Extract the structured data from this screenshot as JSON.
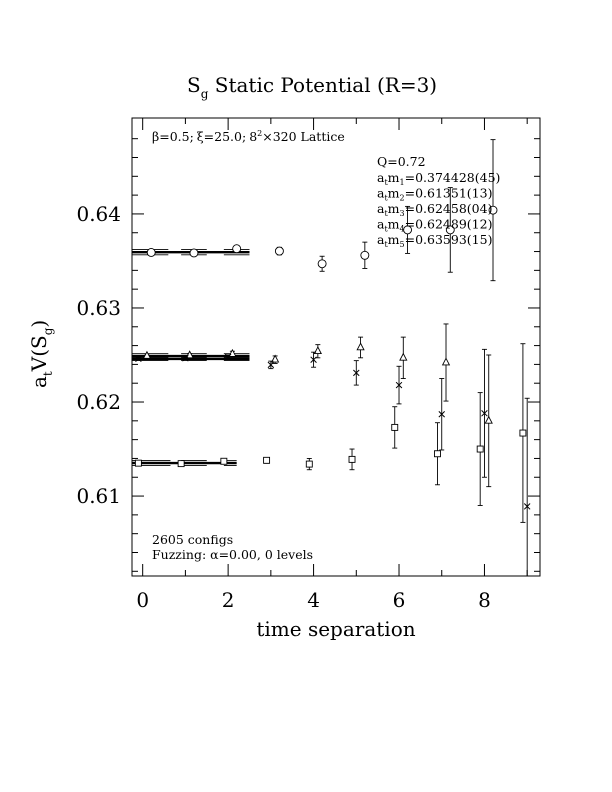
{
  "chart_data": {
    "type": "scatter",
    "title_main": "S",
    "title_sub": "g",
    "title_rest": " Static Potential (R=3)",
    "xlabel": "time separation",
    "ylabel_main": "a",
    "ylabel_sub1": "t",
    "ylabel_mid": "V(S",
    "ylabel_sub2": "g",
    "ylabel_end": ")",
    "xlim": [
      -0.25,
      9.3
    ],
    "ylim": [
      0.6015,
      0.6502
    ],
    "x_ticks": [
      0,
      2,
      4,
      6,
      8
    ],
    "x_tick_labels": [
      "0",
      "2",
      "4",
      "6",
      "8"
    ],
    "y_ticks": [
      0.61,
      0.62,
      0.63,
      0.64
    ],
    "y_tick_labels": [
      "0.61",
      "0.62",
      "0.63",
      "0.64"
    ],
    "lattice_info": {
      "beta": "β=0.5;",
      "xi": "ξ=25.0;",
      "lattice_pre": "8",
      "lattice_sup": "2",
      "lattice_post": "×320 Lattice"
    },
    "fit_info": {
      "q": "Q=0.72",
      "masses": [
        {
          "pre": "a",
          "sub1": "t",
          "mid": "m",
          "sub2": "1",
          "value": "=0.374428(45)"
        },
        {
          "pre": "a",
          "sub1": "t",
          "mid": "m",
          "sub2": "2",
          "value": "=0.61351(13)"
        },
        {
          "pre": "a",
          "sub1": "t",
          "mid": "m",
          "sub2": "3",
          "value": "=0.62458(04)"
        },
        {
          "pre": "a",
          "sub1": "t",
          "mid": "m",
          "sub2": "4",
          "value": "=0.62489(12)"
        },
        {
          "pre": "a",
          "sub1": "t",
          "mid": "m",
          "sub2": "5",
          "value": "=0.63593(15)"
        }
      ]
    },
    "configs": "2605 configs",
    "fuzzing": "Fuzzing: α=0.00, 0 levels",
    "fit_lines": [
      {
        "y": 0.63593,
        "band": 0.00015,
        "x_range": [
          -0.25,
          2.5
        ],
        "segments": [
          [
            -0.25,
            0.6
          ],
          [
            0.9,
            1.5
          ],
          [
            1.9,
            2.5
          ]
        ]
      },
      {
        "y": 0.62489,
        "band": 0.00012,
        "x_range": [
          -0.25,
          2.5
        ],
        "segments": [
          [
            -0.25,
            0.6
          ],
          [
            0.9,
            1.5
          ],
          [
            1.9,
            2.5
          ]
        ]
      },
      {
        "y": 0.62458,
        "band": 4e-05,
        "x_range": [
          -0.25,
          2.5
        ],
        "segments": [
          [
            -0.25,
            0.6
          ],
          [
            0.9,
            1.5
          ],
          [
            1.9,
            2.5
          ]
        ]
      },
      {
        "y": 0.61351,
        "band": 0.00013,
        "x_range": [
          -0.25,
          2.2
        ],
        "segments": [
          [
            -0.25,
            0.65
          ],
          [
            0.9,
            1.5
          ],
          [
            1.9,
            2.2
          ]
        ]
      }
    ],
    "series": [
      {
        "marker": "circle",
        "points": [
          {
            "x": 0.2,
            "y": 0.6359,
            "err": 0.0001
          },
          {
            "x": 1.2,
            "y": 0.63585,
            "err": 0.0002
          },
          {
            "x": 2.2,
            "y": 0.6363,
            "err": 0.0003
          },
          {
            "x": 3.2,
            "y": 0.63605,
            "err": 0.0004
          },
          {
            "x": 4.2,
            "y": 0.6347,
            "err": 0.0008
          },
          {
            "x": 5.2,
            "y": 0.6356,
            "err": 0.0014
          },
          {
            "x": 6.2,
            "y": 0.6383,
            "err": 0.0025
          },
          {
            "x": 7.2,
            "y": 0.6383,
            "err": 0.0045
          },
          {
            "x": 8.2,
            "y": 0.6404,
            "err": 0.0075
          }
        ]
      },
      {
        "marker": "triangle",
        "points": [
          {
            "x": 0.1,
            "y": 0.6249,
            "err": 0.0001
          },
          {
            "x": 1.1,
            "y": 0.62495,
            "err": 0.0002
          },
          {
            "x": 2.1,
            "y": 0.6251,
            "err": 0.0003
          },
          {
            "x": 3.1,
            "y": 0.6245,
            "err": 0.0004
          },
          {
            "x": 4.1,
            "y": 0.6254,
            "err": 0.0007
          },
          {
            "x": 5.1,
            "y": 0.6258,
            "err": 0.0011
          },
          {
            "x": 6.1,
            "y": 0.6247,
            "err": 0.0022
          },
          {
            "x": 7.1,
            "y": 0.6242,
            "err": 0.0041
          },
          {
            "x": 8.1,
            "y": 0.618,
            "err": 0.007
          }
        ]
      },
      {
        "marker": "cross",
        "points": [
          {
            "x": -0.1,
            "y": 0.6246,
            "err": 0.0001
          },
          {
            "x": 1.0,
            "y": 0.62465,
            "err": 0.0001
          },
          {
            "x": 2.0,
            "y": 0.6248,
            "err": 0.0002
          },
          {
            "x": 3.0,
            "y": 0.62395,
            "err": 0.0004
          },
          {
            "x": 4.0,
            "y": 0.6245,
            "err": 0.0008
          },
          {
            "x": 5.0,
            "y": 0.6231,
            "err": 0.0013
          },
          {
            "x": 6.0,
            "y": 0.6218,
            "err": 0.002
          },
          {
            "x": 7.0,
            "y": 0.6187,
            "err": 0.0038
          },
          {
            "x": 8.0,
            "y": 0.6188,
            "err": 0.0068
          },
          {
            "x": 9.0,
            "y": 0.6089,
            "err": 0.0115
          }
        ]
      },
      {
        "marker": "square",
        "points": [
          {
            "x": -0.1,
            "y": 0.6135,
            "err": 0.0001
          },
          {
            "x": 0.9,
            "y": 0.61345,
            "err": 0.0001
          },
          {
            "x": 1.9,
            "y": 0.6137,
            "err": 0.0002
          },
          {
            "x": 2.9,
            "y": 0.6138,
            "err": 0.0003
          },
          {
            "x": 3.9,
            "y": 0.6134,
            "err": 0.0006
          },
          {
            "x": 4.9,
            "y": 0.6139,
            "err": 0.0011
          },
          {
            "x": 5.9,
            "y": 0.6173,
            "err": 0.0022
          },
          {
            "x": 6.9,
            "y": 0.6145,
            "err": 0.0033
          },
          {
            "x": 7.9,
            "y": 0.615,
            "err": 0.006
          },
          {
            "x": 8.9,
            "y": 0.6167,
            "err": 0.0095
          }
        ]
      }
    ]
  }
}
